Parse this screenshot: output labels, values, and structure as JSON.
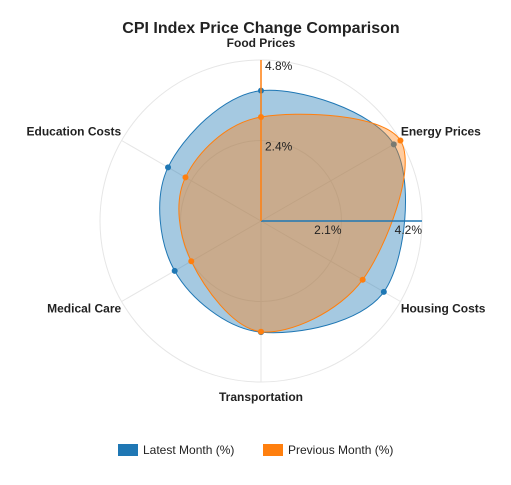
{
  "chart_data": {
    "type": "radar",
    "title": "CPI Index Price Change Comparison",
    "categories": [
      "Food Prices",
      "Energy Prices",
      "Housing Costs",
      "Transportation",
      "Medical Care",
      "Education Costs"
    ],
    "series": [
      {
        "name": "Latest Month (%)",
        "color": "#1f77b4",
        "values": [
          3.4,
          4.0,
          3.7,
          2.9,
          2.6,
          2.8
        ]
      },
      {
        "name": "Previous Month (%)",
        "color": "#ff7f0e",
        "axis": "y2",
        "values": [
          3.1,
          4.8,
          3.5,
          3.3,
          2.4,
          2.6
        ]
      }
    ],
    "ylim": [
      0,
      4.2
    ],
    "yticks": [
      {
        "value": 2.1,
        "label": "2.1%"
      },
      {
        "value": 4.2,
        "label": "4.2%"
      }
    ],
    "y2lim": [
      0,
      4.8
    ],
    "y2ticks": [
      {
        "value": 2.4,
        "label": "2.4%"
      },
      {
        "value": 4.8,
        "label": "4.8%"
      }
    ],
    "legend": "bottom"
  }
}
